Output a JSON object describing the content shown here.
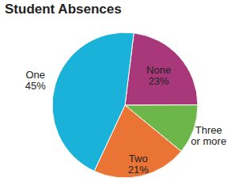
{
  "chart_data": {
    "type": "pie",
    "title": "Student Absences",
    "categories": [
      "None",
      "Three or more",
      "Two",
      "One"
    ],
    "values": [
      23,
      11,
      21,
      45
    ],
    "value_labels": [
      "23%",
      null,
      "21%",
      "45%"
    ],
    "data_labels": true,
    "colors": [
      "#a8387a",
      "#6cb64a",
      "#ea7434",
      "#1ab2d9"
    ]
  }
}
